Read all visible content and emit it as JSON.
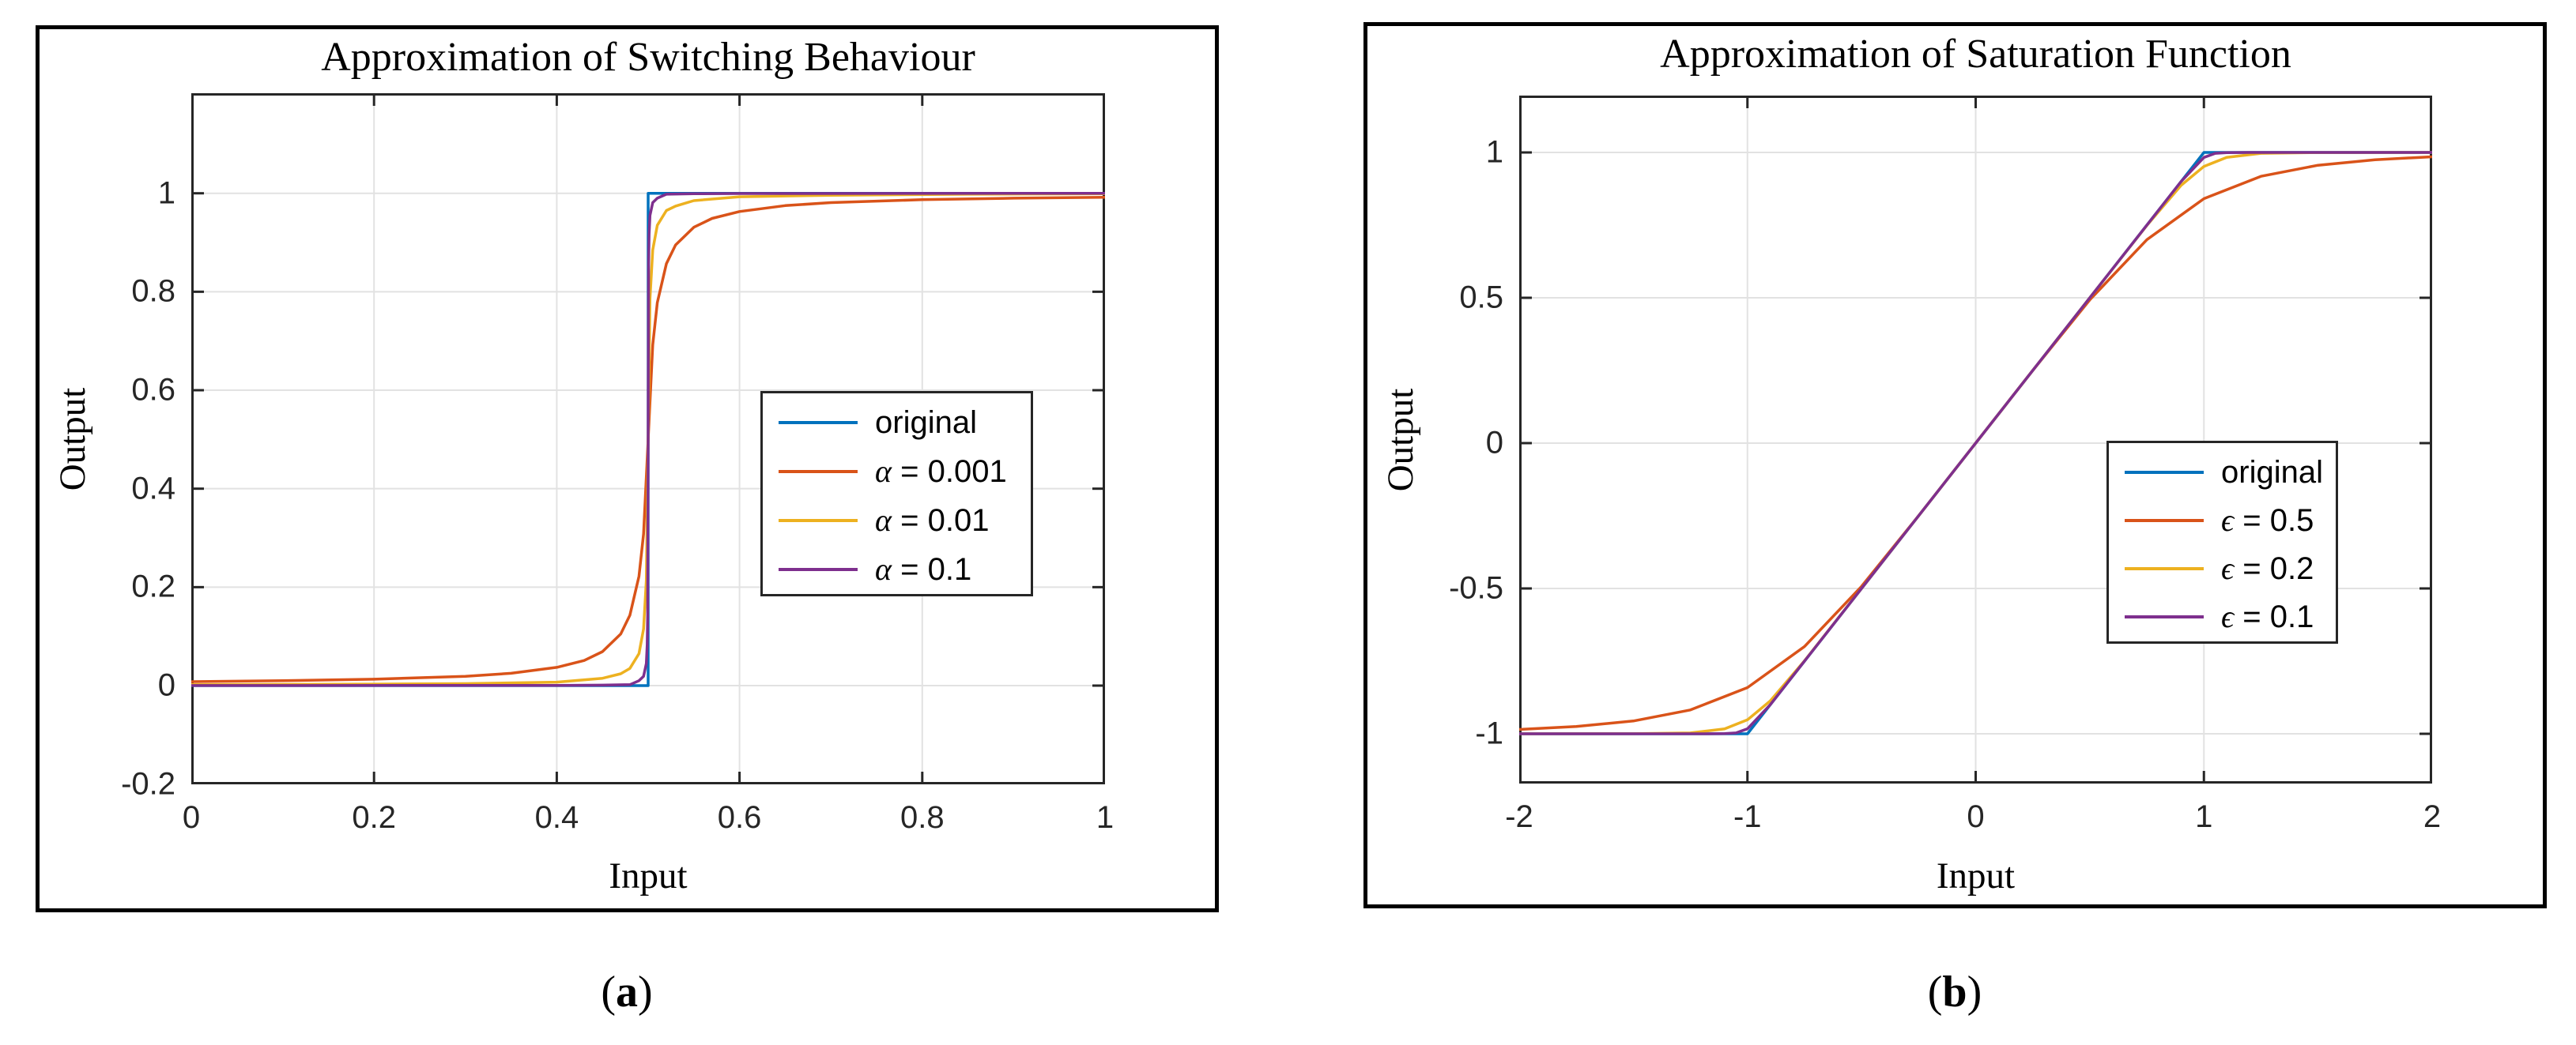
{
  "figure": {
    "background": "#ffffff",
    "panel_labels": [
      "(a)",
      "(b)"
    ]
  },
  "style": {
    "axis_color": "#262626",
    "grid_color": "#e2e2e2",
    "frame_color": "#000000",
    "series_colors": {
      "blue": "#0072BD",
      "orange": "#D95319",
      "yellow": "#EDB120",
      "purple": "#7E2F8E"
    }
  },
  "chart_data": [
    {
      "type": "line",
      "title": "Approximation of Switching Behaviour",
      "xlabel": "Input",
      "ylabel": "Output",
      "xlim": [
        0,
        1
      ],
      "ylim": [
        -0.2,
        1.2
      ],
      "grid": true,
      "legend_position": "middle-right",
      "panel_label": "(a)",
      "x_ticks": [
        0,
        0.2,
        0.4,
        0.6,
        0.8,
        1
      ],
      "x_tick_labels": [
        "0",
        "0.2",
        "0.4",
        "0.6",
        "0.8",
        "1"
      ],
      "y_ticks": [
        -0.2,
        0,
        0.2,
        0.4,
        0.6,
        0.8,
        1
      ],
      "y_tick_labels": [
        "-0.2",
        "0",
        "0.2",
        "0.4",
        "0.6",
        "0.8",
        "1"
      ],
      "series": [
        {
          "name": "original",
          "color": "#0072BD",
          "points": [
            [
              0,
              0
            ],
            [
              0.5,
              0
            ],
            [
              0.5,
              1
            ],
            [
              1,
              1
            ]
          ]
        },
        {
          "name": "α = 0.001",
          "color": "#D95319",
          "points": [
            [
              0,
              0.008
            ],
            [
              0.1,
              0.01
            ],
            [
              0.2,
              0.013
            ],
            [
              0.3,
              0.019
            ],
            [
              0.35,
              0.025
            ],
            [
              0.4,
              0.037
            ],
            [
              0.43,
              0.051
            ],
            [
              0.45,
              0.069
            ],
            [
              0.47,
              0.105
            ],
            [
              0.48,
              0.143
            ],
            [
              0.49,
              0.222
            ],
            [
              0.495,
              0.308
            ],
            [
              0.5,
              0.5
            ],
            [
              0.505,
              0.692
            ],
            [
              0.51,
              0.778
            ],
            [
              0.52,
              0.857
            ],
            [
              0.53,
              0.895
            ],
            [
              0.55,
              0.931
            ],
            [
              0.57,
              0.949
            ],
            [
              0.6,
              0.963
            ],
            [
              0.65,
              0.975
            ],
            [
              0.7,
              0.981
            ],
            [
              0.8,
              0.987
            ],
            [
              0.9,
              0.99
            ],
            [
              1,
              0.992
            ]
          ]
        },
        {
          "name": "α = 0.01",
          "color": "#EDB120",
          "points": [
            [
              0,
              0.002
            ],
            [
              0.2,
              0.003
            ],
            [
              0.3,
              0.004
            ],
            [
              0.4,
              0.007
            ],
            [
              0.45,
              0.015
            ],
            [
              0.47,
              0.024
            ],
            [
              0.48,
              0.035
            ],
            [
              0.49,
              0.065
            ],
            [
              0.495,
              0.115
            ],
            [
              0.498,
              0.214
            ],
            [
              0.5,
              0.5
            ],
            [
              0.502,
              0.786
            ],
            [
              0.505,
              0.885
            ],
            [
              0.51,
              0.935
            ],
            [
              0.52,
              0.965
            ],
            [
              0.53,
              0.974
            ],
            [
              0.55,
              0.985
            ],
            [
              0.6,
              0.993
            ],
            [
              0.7,
              0.996
            ],
            [
              0.85,
              0.998
            ],
            [
              1,
              0.999
            ]
          ]
        },
        {
          "name": "α = 0.1",
          "color": "#7E2F8E",
          "points": [
            [
              0,
              0.0002
            ],
            [
              0.4,
              0.0005
            ],
            [
              0.45,
              0.001
            ],
            [
              0.48,
              0.002
            ],
            [
              0.49,
              0.01
            ],
            [
              0.495,
              0.019
            ],
            [
              0.498,
              0.045
            ],
            [
              0.499,
              0.083
            ],
            [
              0.4995,
              0.143
            ],
            [
              0.5,
              0.5
            ],
            [
              0.5005,
              0.857
            ],
            [
              0.501,
              0.917
            ],
            [
              0.502,
              0.955
            ],
            [
              0.505,
              0.981
            ],
            [
              0.51,
              0.99
            ],
            [
              0.52,
              0.998
            ],
            [
              0.55,
              0.999
            ],
            [
              0.6,
              0.9995
            ],
            [
              1,
              1
            ]
          ]
        }
      ]
    },
    {
      "type": "line",
      "title": "Approximation of Saturation Function",
      "xlabel": "Input",
      "ylabel": "Output",
      "xlim": [
        -2,
        2
      ],
      "ylim": [
        -1.2,
        1.2
      ],
      "grid": true,
      "legend_position": "middle-right",
      "panel_label": "(b)",
      "x_ticks": [
        -2,
        -1,
        0,
        1,
        2
      ],
      "x_tick_labels": [
        "-2",
        "-1",
        "0",
        "1",
        "2"
      ],
      "y_ticks": [
        -1,
        -0.5,
        0,
        0.5,
        1
      ],
      "y_tick_labels": [
        "-1",
        "-0.5",
        "0",
        "0.5",
        "1"
      ],
      "series": [
        {
          "name": "original",
          "color": "#0072BD",
          "points": [
            [
              -2,
              -1
            ],
            [
              -1,
              -1
            ],
            [
              1,
              1
            ],
            [
              2,
              1
            ]
          ]
        },
        {
          "name": "ϵ = 0.5",
          "color": "#D95319",
          "points": [
            [
              -2,
              -0.985
            ],
            [
              -1.75,
              -0.975
            ],
            [
              -1.5,
              -0.956
            ],
            [
              -1.25,
              -0.918
            ],
            [
              -1,
              -0.841
            ],
            [
              -0.75,
              -0.7
            ],
            [
              -0.5,
              -0.493
            ],
            [
              -0.25,
              -0.25
            ],
            [
              0,
              0
            ],
            [
              0.25,
              0.25
            ],
            [
              0.5,
              0.493
            ],
            [
              0.75,
              0.7
            ],
            [
              1,
              0.841
            ],
            [
              1.25,
              0.918
            ],
            [
              1.5,
              0.956
            ],
            [
              1.75,
              0.975
            ],
            [
              2,
              0.985
            ]
          ]
        },
        {
          "name": "ϵ = 0.2",
          "color": "#EDB120",
          "points": [
            [
              -2,
              -1
            ],
            [
              -1.5,
              -0.9997
            ],
            [
              -1.25,
              -0.997
            ],
            [
              -1.1,
              -0.983
            ],
            [
              -1,
              -0.952
            ],
            [
              -0.9,
              -0.887
            ],
            [
              -0.75,
              -0.749
            ],
            [
              -0.5,
              -0.5
            ],
            [
              0,
              0
            ],
            [
              0.5,
              0.5
            ],
            [
              0.75,
              0.749
            ],
            [
              0.9,
              0.887
            ],
            [
              1,
              0.952
            ],
            [
              1.1,
              0.983
            ],
            [
              1.25,
              0.997
            ],
            [
              1.5,
              0.9997
            ],
            [
              2,
              1
            ]
          ]
        },
        {
          "name": "ϵ = 0.1",
          "color": "#7E2F8E",
          "points": [
            [
              -2,
              -1
            ],
            [
              -1.2,
              -1
            ],
            [
              -1.1,
              -0.9995
            ],
            [
              -1.05,
              -0.997
            ],
            [
              -1,
              -0.983
            ],
            [
              -0.9,
              -0.9
            ],
            [
              -0.75,
              -0.75
            ],
            [
              -0.5,
              -0.5
            ],
            [
              0,
              0
            ],
            [
              0.5,
              0.5
            ],
            [
              0.75,
              0.75
            ],
            [
              0.9,
              0.9
            ],
            [
              1,
              0.983
            ],
            [
              1.05,
              0.997
            ],
            [
              1.1,
              0.9995
            ],
            [
              1.2,
              1
            ],
            [
              2,
              1
            ]
          ]
        }
      ]
    }
  ]
}
